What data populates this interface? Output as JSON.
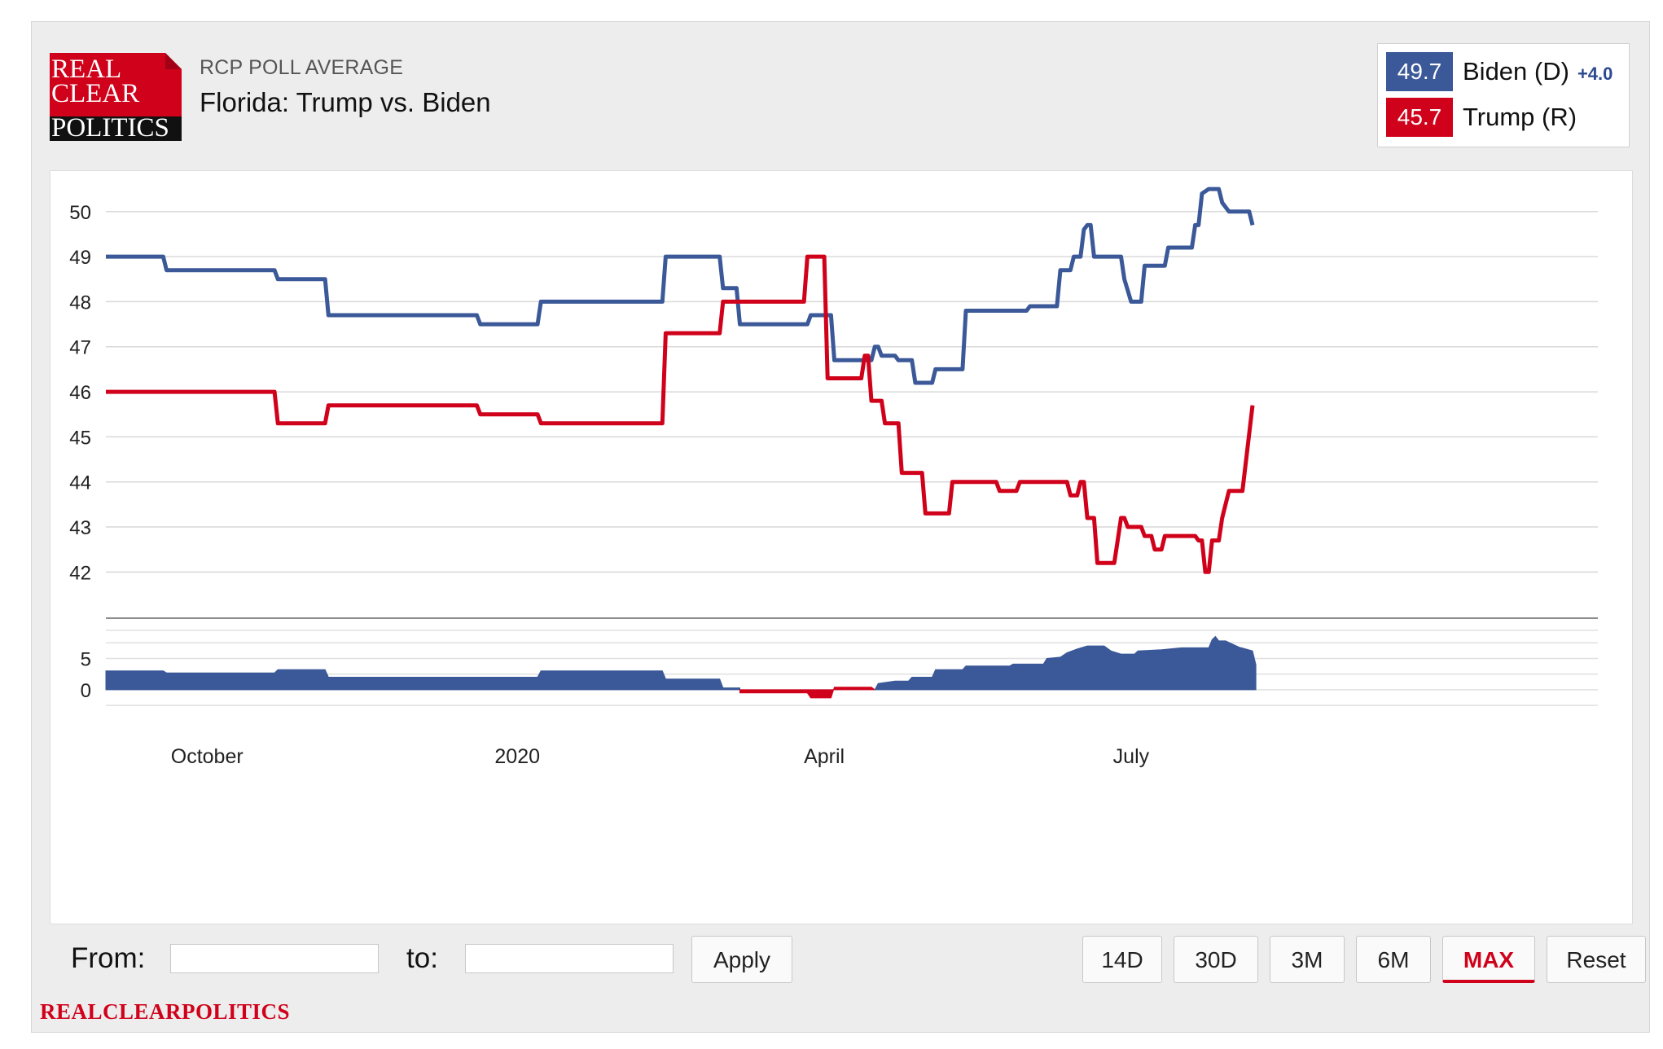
{
  "header": {
    "logo_lines": [
      "REAL",
      "CLEAR",
      "POLITICS"
    ],
    "kicker": "RCP POLL AVERAGE",
    "title": "Florida: Trump vs. Biden"
  },
  "legend": {
    "biden": {
      "value": "49.7",
      "name": "Biden (D)",
      "spread": "+4.0",
      "color": "#3b5998"
    },
    "trump": {
      "value": "45.7",
      "name": "Trump (R)",
      "color": "#d0021b"
    }
  },
  "chart_data": {
    "type": "line",
    "x_ticks": [
      {
        "label": "October",
        "date": "2019-10-01"
      },
      {
        "label": "2020",
        "date": "2020-01-01"
      },
      {
        "label": "April",
        "date": "2020-04-01"
      },
      {
        "label": "July",
        "date": "2020-07-01"
      }
    ],
    "main_panel": {
      "ylim": [
        41.5,
        50.9
      ],
      "yticks": [
        42,
        43,
        44,
        45,
        46,
        47,
        48,
        49,
        50
      ],
      "grid": true
    },
    "spread_panel": {
      "ylim": [
        -3,
        10
      ],
      "yticks": [
        0,
        5
      ],
      "series": [
        {
          "color": "#3b5998",
          "points": [
            [
              "2019-09-01",
              3.0
            ],
            [
              "2019-09-18",
              3.0
            ],
            [
              "2019-09-19",
              2.7
            ],
            [
              "2019-10-21",
              2.7
            ],
            [
              "2019-10-22",
              3.2
            ],
            [
              "2019-11-05",
              3.2
            ],
            [
              "2019-11-06",
              2.0
            ],
            [
              "2019-12-20",
              2.0
            ],
            [
              "2020-01-07",
              2.0
            ],
            [
              "2020-01-08",
              3.0
            ],
            [
              "2020-02-13",
              3.0
            ],
            [
              "2020-02-14",
              1.7
            ],
            [
              "2020-03-01",
              1.7
            ],
            [
              "2020-03-02",
              0.3
            ],
            [
              "2020-03-07",
              0.3
            ]
          ]
        },
        {
          "color": "#d0021b",
          "points": [
            [
              "2020-03-07",
              -0.5
            ],
            [
              "2020-03-27",
              -0.5
            ],
            [
              "2020-03-28",
              -1.3
            ],
            [
              "2020-04-03",
              -1.3
            ],
            [
              "2020-04-04",
              0.4
            ],
            [
              "2020-04-15",
              0.4
            ],
            [
              "2020-04-16",
              0.0
            ]
          ]
        },
        {
          "color": "#3b5998",
          "points": [
            [
              "2020-04-16",
              0.0
            ],
            [
              "2020-04-17",
              1.0
            ],
            [
              "2020-04-22",
              1.4
            ],
            [
              "2020-04-26",
              1.4
            ],
            [
              "2020-04-27",
              2.0
            ],
            [
              "2020-05-03",
              2.0
            ],
            [
              "2020-05-04",
              3.2
            ],
            [
              "2020-05-12",
              3.2
            ],
            [
              "2020-05-13",
              3.8
            ],
            [
              "2020-05-26",
              3.8
            ],
            [
              "2020-05-27",
              4.1
            ],
            [
              "2020-06-05",
              4.1
            ],
            [
              "2020-06-06",
              5.0
            ],
            [
              "2020-06-10",
              5.2
            ],
            [
              "2020-06-12",
              5.9
            ],
            [
              "2020-06-15",
              6.5
            ],
            [
              "2020-06-18",
              7.0
            ],
            [
              "2020-06-23",
              7.0
            ],
            [
              "2020-06-25",
              6.2
            ],
            [
              "2020-06-28",
              5.7
            ],
            [
              "2020-07-02",
              5.7
            ],
            [
              "2020-07-03",
              6.2
            ],
            [
              "2020-07-10",
              6.4
            ],
            [
              "2020-07-16",
              6.7
            ],
            [
              "2020-07-24",
              6.7
            ],
            [
              "2020-07-25",
              8.0
            ],
            [
              "2020-07-26",
              8.5
            ],
            [
              "2020-07-27",
              7.8
            ],
            [
              "2020-07-29",
              7.8
            ],
            [
              "2020-08-02",
              6.8
            ],
            [
              "2020-08-06",
              6.2
            ],
            [
              "2020-08-07",
              4.0
            ]
          ]
        }
      ]
    },
    "series": [
      {
        "name": "Biden (D)",
        "color": "#3b5998",
        "points": [
          [
            "2019-09-01",
            49.0
          ],
          [
            "2019-09-18",
            49.0
          ],
          [
            "2019-09-19",
            48.7
          ],
          [
            "2019-10-21",
            48.7
          ],
          [
            "2019-10-22",
            48.5
          ],
          [
            "2019-11-05",
            48.5
          ],
          [
            "2019-11-06",
            47.7
          ],
          [
            "2019-12-20",
            47.7
          ],
          [
            "2019-12-21",
            47.5
          ],
          [
            "2020-01-07",
            47.5
          ],
          [
            "2020-01-08",
            48.0
          ],
          [
            "2020-02-13",
            48.0
          ],
          [
            "2020-02-14",
            49.0
          ],
          [
            "2020-03-01",
            49.0
          ],
          [
            "2020-03-02",
            48.3
          ],
          [
            "2020-03-06",
            48.3
          ],
          [
            "2020-03-07",
            47.5
          ],
          [
            "2020-03-27",
            47.5
          ],
          [
            "2020-03-28",
            47.7
          ],
          [
            "2020-04-03",
            47.7
          ],
          [
            "2020-04-04",
            46.7
          ],
          [
            "2020-04-15",
            46.7
          ],
          [
            "2020-04-16",
            47.0
          ],
          [
            "2020-04-17",
            47.0
          ],
          [
            "2020-04-18",
            46.8
          ],
          [
            "2020-04-22",
            46.8
          ],
          [
            "2020-04-23",
            46.7
          ],
          [
            "2020-04-27",
            46.7
          ],
          [
            "2020-04-28",
            46.2
          ],
          [
            "2020-05-03",
            46.2
          ],
          [
            "2020-05-04",
            46.5
          ],
          [
            "2020-05-12",
            46.5
          ],
          [
            "2020-05-13",
            47.8
          ],
          [
            "2020-05-31",
            47.8
          ],
          [
            "2020-06-01",
            47.9
          ],
          [
            "2020-06-09",
            47.9
          ],
          [
            "2020-06-10",
            48.7
          ],
          [
            "2020-06-13",
            48.7
          ],
          [
            "2020-06-14",
            49.0
          ],
          [
            "2020-06-16",
            49.0
          ],
          [
            "2020-06-17",
            49.6
          ],
          [
            "2020-06-18",
            49.7
          ],
          [
            "2020-06-19",
            49.7
          ],
          [
            "2020-06-20",
            49.0
          ],
          [
            "2020-06-28",
            49.0
          ],
          [
            "2020-06-29",
            48.5
          ],
          [
            "2020-07-01",
            48.0
          ],
          [
            "2020-07-04",
            48.0
          ],
          [
            "2020-07-05",
            48.8
          ],
          [
            "2020-07-11",
            48.8
          ],
          [
            "2020-07-12",
            49.2
          ],
          [
            "2020-07-19",
            49.2
          ],
          [
            "2020-07-20",
            49.7
          ],
          [
            "2020-07-21",
            49.7
          ],
          [
            "2020-07-22",
            50.4
          ],
          [
            "2020-07-24",
            50.5
          ],
          [
            "2020-07-27",
            50.5
          ],
          [
            "2020-07-28",
            50.2
          ],
          [
            "2020-07-30",
            50.0
          ],
          [
            "2020-08-05",
            50.0
          ],
          [
            "2020-08-06",
            49.7
          ]
        ]
      },
      {
        "name": "Trump (R)",
        "color": "#d0021b",
        "points": [
          [
            "2019-09-01",
            46.0
          ],
          [
            "2019-10-21",
            46.0
          ],
          [
            "2019-10-22",
            45.3
          ],
          [
            "2019-11-05",
            45.3
          ],
          [
            "2019-11-06",
            45.7
          ],
          [
            "2019-12-20",
            45.7
          ],
          [
            "2019-12-21",
            45.5
          ],
          [
            "2020-01-07",
            45.5
          ],
          [
            "2020-01-08",
            45.3
          ],
          [
            "2020-02-13",
            45.3
          ],
          [
            "2020-02-14",
            47.3
          ],
          [
            "2020-03-01",
            47.3
          ],
          [
            "2020-03-02",
            48.0
          ],
          [
            "2020-03-26",
            48.0
          ],
          [
            "2020-03-27",
            49.0
          ],
          [
            "2020-04-01",
            49.0
          ],
          [
            "2020-04-02",
            46.3
          ],
          [
            "2020-04-12",
            46.3
          ],
          [
            "2020-04-13",
            46.8
          ],
          [
            "2020-04-14",
            46.8
          ],
          [
            "2020-04-15",
            45.8
          ],
          [
            "2020-04-18",
            45.8
          ],
          [
            "2020-04-19",
            45.3
          ],
          [
            "2020-04-23",
            45.3
          ],
          [
            "2020-04-24",
            44.2
          ],
          [
            "2020-04-30",
            44.2
          ],
          [
            "2020-05-01",
            43.3
          ],
          [
            "2020-05-08",
            43.3
          ],
          [
            "2020-05-09",
            44.0
          ],
          [
            "2020-05-22",
            44.0
          ],
          [
            "2020-05-23",
            43.8
          ],
          [
            "2020-05-28",
            43.8
          ],
          [
            "2020-05-29",
            44.0
          ],
          [
            "2020-06-12",
            44.0
          ],
          [
            "2020-06-13",
            43.7
          ],
          [
            "2020-06-15",
            43.7
          ],
          [
            "2020-06-16",
            44.0
          ],
          [
            "2020-06-17",
            44.0
          ],
          [
            "2020-06-18",
            43.2
          ],
          [
            "2020-06-20",
            43.2
          ],
          [
            "2020-06-21",
            42.2
          ],
          [
            "2020-06-26",
            42.2
          ],
          [
            "2020-06-27",
            42.7
          ],
          [
            "2020-06-28",
            43.2
          ],
          [
            "2020-06-29",
            43.2
          ],
          [
            "2020-06-30",
            43.0
          ],
          [
            "2020-07-04",
            43.0
          ],
          [
            "2020-07-05",
            42.8
          ],
          [
            "2020-07-07",
            42.8
          ],
          [
            "2020-07-08",
            42.5
          ],
          [
            "2020-07-10",
            42.5
          ],
          [
            "2020-07-11",
            42.8
          ],
          [
            "2020-07-20",
            42.8
          ],
          [
            "2020-07-21",
            42.7
          ],
          [
            "2020-07-22",
            42.7
          ],
          [
            "2020-07-23",
            42.0
          ],
          [
            "2020-07-24",
            42.0
          ],
          [
            "2020-07-25",
            42.7
          ],
          [
            "2020-07-27",
            42.7
          ],
          [
            "2020-07-28",
            43.2
          ],
          [
            "2020-07-30",
            43.8
          ],
          [
            "2020-08-03",
            43.8
          ],
          [
            "2020-08-06",
            45.7
          ]
        ]
      }
    ]
  },
  "controls": {
    "from_label": "From:",
    "to_label": "to:",
    "from_value": "",
    "to_value": "",
    "apply_label": "Apply",
    "range_buttons": [
      "14D",
      "30D",
      "3M",
      "6M",
      "MAX"
    ],
    "active_range": "MAX",
    "reset_label": "Reset"
  },
  "footer": {
    "text": "REALCLEARPOLITICS"
  }
}
